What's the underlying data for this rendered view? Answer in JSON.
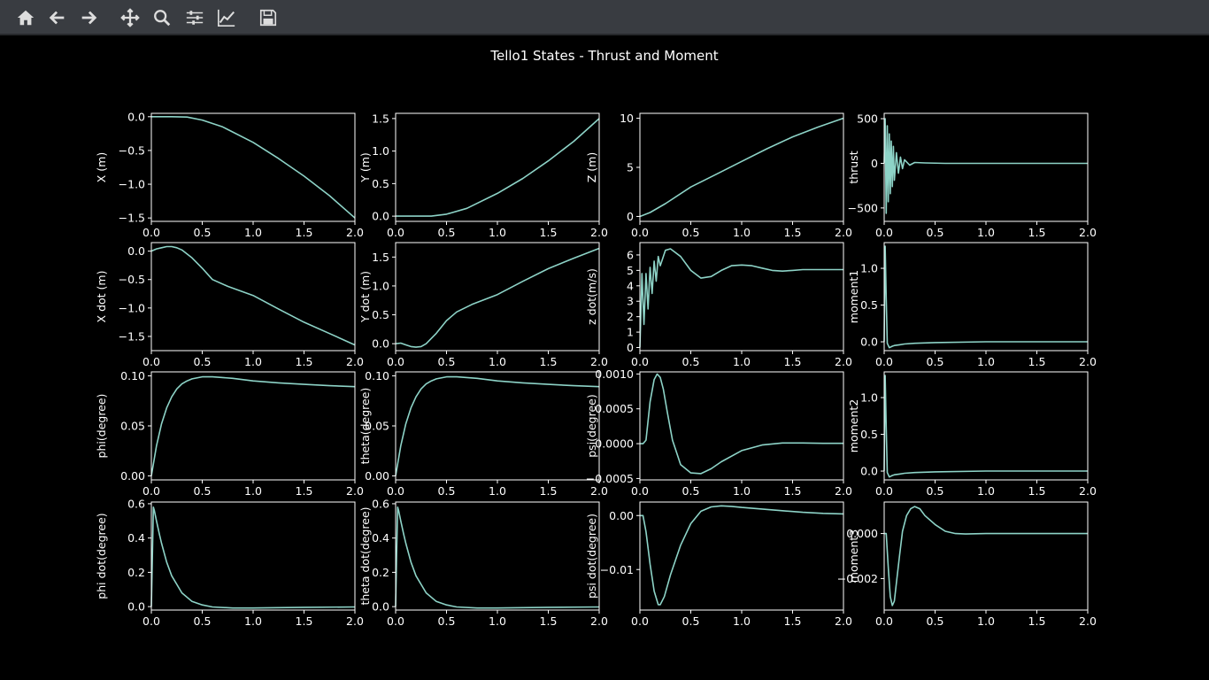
{
  "toolbar": {
    "buttons": [
      {
        "name": "home-button",
        "icon": "home-icon"
      },
      {
        "name": "back-button",
        "icon": "arrow-left-icon"
      },
      {
        "name": "forward-button",
        "icon": "arrow-right-icon"
      },
      {
        "name": "pan-button",
        "icon": "move-icon"
      },
      {
        "name": "zoom-button",
        "icon": "magnifier-icon"
      },
      {
        "name": "subplots-button",
        "icon": "sliders-icon"
      },
      {
        "name": "axes-button",
        "icon": "line-chart-icon"
      },
      {
        "name": "save-button",
        "icon": "floppy-icon"
      }
    ]
  },
  "figure": {
    "title": "Tello1 States - Thrust and Moment",
    "background": "#000000",
    "line_color": "#8dd3c7"
  },
  "chart_data": [
    {
      "type": "line",
      "ylabel": "X (m)",
      "xlim": [
        0,
        2
      ],
      "ylim": [
        -1.55,
        0.05
      ],
      "xticks": [
        "0.0",
        "0.5",
        "1.0",
        "1.5",
        "2.0"
      ],
      "yticks": [
        {
          "v": 0,
          "label": "0.0"
        },
        {
          "v": -0.5,
          "label": "−0.5"
        },
        {
          "v": -1,
          "label": "−1.0"
        },
        {
          "v": -1.5,
          "label": "−1.5"
        }
      ],
      "x": [
        0,
        0.2,
        0.35,
        0.5,
        0.7,
        1.0,
        1.25,
        1.5,
        1.75,
        2.0
      ],
      "y": [
        0,
        0,
        -0.005,
        -0.05,
        -0.15,
        -0.38,
        -0.62,
        -0.88,
        -1.17,
        -1.5
      ]
    },
    {
      "type": "line",
      "ylabel": "Y (m)",
      "xlim": [
        0,
        2
      ],
      "ylim": [
        -0.08,
        1.58
      ],
      "xticks": [
        "0.0",
        "0.5",
        "1.0",
        "1.5",
        "2.0"
      ],
      "yticks": [
        {
          "v": 0,
          "label": "0.0"
        },
        {
          "v": 0.5,
          "label": "0.5"
        },
        {
          "v": 1,
          "label": "1.0"
        },
        {
          "v": 1.5,
          "label": "1.5"
        }
      ],
      "x": [
        0,
        0.2,
        0.35,
        0.5,
        0.7,
        1.0,
        1.25,
        1.5,
        1.75,
        2.0
      ],
      "y": [
        0,
        0,
        0,
        0.03,
        0.12,
        0.35,
        0.58,
        0.85,
        1.15,
        1.5
      ]
    },
    {
      "type": "line",
      "ylabel": "Z (m)",
      "xlim": [
        0,
        2
      ],
      "ylim": [
        -0.5,
        10.5
      ],
      "xticks": [
        "0.0",
        "0.5",
        "1.0",
        "1.5",
        "2.0"
      ],
      "yticks": [
        {
          "v": 0,
          "label": "0"
        },
        {
          "v": 5,
          "label": "5"
        },
        {
          "v": 10,
          "label": "10"
        }
      ],
      "x": [
        0,
        0.1,
        0.25,
        0.5,
        0.75,
        1.0,
        1.25,
        1.5,
        1.75,
        2.0
      ],
      "y": [
        0,
        0.4,
        1.3,
        3.0,
        4.3,
        5.6,
        6.9,
        8.1,
        9.1,
        10.0
      ]
    },
    {
      "type": "line",
      "ylabel": "thrust",
      "xlim": [
        0,
        2
      ],
      "ylim": [
        -650,
        560
      ],
      "xticks": [
        "0.0",
        "0.5",
        "1.0",
        "1.5",
        "2.0"
      ],
      "yticks": [
        {
          "v": 500,
          "label": "500"
        },
        {
          "v": 0,
          "label": "0"
        },
        {
          "v": -500,
          "label": "−500"
        }
      ],
      "x": [
        0,
        0.01,
        0.02,
        0.03,
        0.04,
        0.05,
        0.06,
        0.07,
        0.08,
        0.09,
        0.1,
        0.12,
        0.14,
        0.16,
        0.18,
        0.2,
        0.25,
        0.3,
        0.4,
        0.6,
        1.0,
        2.0
      ],
      "y": [
        0,
        500,
        -560,
        420,
        -430,
        330,
        -340,
        250,
        -260,
        190,
        -190,
        120,
        -110,
        70,
        -60,
        40,
        -20,
        10,
        5,
        0,
        0,
        0
      ]
    },
    {
      "type": "line",
      "ylabel": "X dot (m)",
      "xlim": [
        0,
        2
      ],
      "ylim": [
        -1.75,
        0.15
      ],
      "xticks": [
        "0.0",
        "0.5",
        "1.0",
        "1.5",
        "2.0"
      ],
      "yticks": [
        {
          "v": 0,
          "label": "0.0"
        },
        {
          "v": -0.5,
          "label": "−0.5"
        },
        {
          "v": -1,
          "label": "−1.0"
        },
        {
          "v": -1.5,
          "label": "−1.5"
        }
      ],
      "x": [
        0,
        0.05,
        0.1,
        0.15,
        0.2,
        0.25,
        0.3,
        0.4,
        0.5,
        0.6,
        0.75,
        1.0,
        1.25,
        1.5,
        1.75,
        2.0
      ],
      "y": [
        0,
        0.04,
        0.06,
        0.08,
        0.08,
        0.06,
        0.02,
        -0.12,
        -0.3,
        -0.5,
        -0.62,
        -0.78,
        -1.02,
        -1.25,
        -1.45,
        -1.65
      ]
    },
    {
      "type": "line",
      "ylabel": "Y dot (m)",
      "xlim": [
        0,
        2
      ],
      "ylim": [
        -0.12,
        1.75
      ],
      "xticks": [
        "0.0",
        "0.5",
        "1.0",
        "1.5",
        "2.0"
      ],
      "yticks": [
        {
          "v": 0,
          "label": "0.0"
        },
        {
          "v": 0.5,
          "label": "0.5"
        },
        {
          "v": 1,
          "label": "1.0"
        },
        {
          "v": 1.5,
          "label": "1.5"
        }
      ],
      "x": [
        0,
        0.05,
        0.1,
        0.15,
        0.2,
        0.25,
        0.3,
        0.4,
        0.5,
        0.6,
        0.75,
        1.0,
        1.25,
        1.5,
        1.75,
        2.0
      ],
      "y": [
        0,
        0.01,
        -0.02,
        -0.05,
        -0.06,
        -0.05,
        0,
        0.18,
        0.4,
        0.55,
        0.68,
        0.85,
        1.08,
        1.3,
        1.48,
        1.65
      ]
    },
    {
      "type": "line",
      "ylabel": "z dot(m/s)",
      "xlim": [
        0,
        2
      ],
      "ylim": [
        -0.2,
        6.8
      ],
      "xticks": [
        "0.0",
        "0.5",
        "1.0",
        "1.5",
        "2.0"
      ],
      "yticks": [
        {
          "v": 0,
          "label": "0"
        },
        {
          "v": 1,
          "label": "1"
        },
        {
          "v": 2,
          "label": "2"
        },
        {
          "v": 3,
          "label": "3"
        },
        {
          "v": 4,
          "label": "4"
        },
        {
          "v": 5,
          "label": "5"
        },
        {
          "v": 6,
          "label": "6"
        }
      ],
      "x": [
        0,
        0.02,
        0.04,
        0.06,
        0.08,
        0.1,
        0.12,
        0.14,
        0.16,
        0.18,
        0.2,
        0.25,
        0.3,
        0.4,
        0.5,
        0.6,
        0.7,
        0.8,
        0.9,
        1.0,
        1.1,
        1.2,
        1.3,
        1.4,
        1.5,
        1.6,
        1.8,
        2.0
      ],
      "y": [
        0,
        4.8,
        1.5,
        4.8,
        2.5,
        5.2,
        3.5,
        5.6,
        4.3,
        5.9,
        5.3,
        6.3,
        6.4,
        5.9,
        5.0,
        4.5,
        4.6,
        5.0,
        5.3,
        5.35,
        5.3,
        5.15,
        5.0,
        4.95,
        5.0,
        5.05,
        5.05,
        5.05
      ]
    },
    {
      "type": "line",
      "ylabel": "moment1",
      "xlim": [
        0,
        2
      ],
      "ylim": [
        -0.12,
        1.35
      ],
      "xticks": [
        "0.0",
        "0.5",
        "1.0",
        "1.5",
        "2.0"
      ],
      "yticks": [
        {
          "v": 0,
          "label": "0.0"
        },
        {
          "v": 0.5,
          "label": "0.5"
        },
        {
          "v": 1,
          "label": "1.0"
        }
      ],
      "x": [
        0,
        0.01,
        0.02,
        0.03,
        0.05,
        0.08,
        0.1,
        0.15,
        0.2,
        0.3,
        0.5,
        1.0,
        2.0
      ],
      "y": [
        0,
        1.3,
        0.6,
        -0.02,
        -0.08,
        -0.06,
        -0.05,
        -0.04,
        -0.03,
        -0.02,
        -0.01,
        0,
        0
      ]
    },
    {
      "type": "line",
      "ylabel": "phi(degree)",
      "xlim": [
        0,
        2
      ],
      "ylim": [
        -0.004,
        0.104
      ],
      "xticks": [
        "0.0",
        "0.5",
        "1.0",
        "1.5",
        "2.0"
      ],
      "yticks": [
        {
          "v": 0,
          "label": "0.00"
        },
        {
          "v": 0.05,
          "label": "0.05"
        },
        {
          "v": 0.1,
          "label": "0.10"
        }
      ],
      "x": [
        0,
        0.05,
        0.1,
        0.15,
        0.2,
        0.25,
        0.3,
        0.35,
        0.4,
        0.5,
        0.6,
        0.8,
        1.0,
        1.25,
        1.5,
        1.75,
        2.0
      ],
      "y": [
        0,
        0.03,
        0.052,
        0.068,
        0.079,
        0.087,
        0.092,
        0.095,
        0.097,
        0.099,
        0.099,
        0.0975,
        0.095,
        0.093,
        0.0915,
        0.0902,
        0.0892
      ]
    },
    {
      "type": "line",
      "ylabel": "theta(degree)",
      "xlim": [
        0,
        2
      ],
      "ylim": [
        -0.004,
        0.104
      ],
      "xticks": [
        "0.0",
        "0.5",
        "1.0",
        "1.5",
        "2.0"
      ],
      "yticks": [
        {
          "v": 0,
          "label": "0.00"
        },
        {
          "v": 0.05,
          "label": "0.05"
        },
        {
          "v": 0.1,
          "label": "0.10"
        }
      ],
      "x": [
        0,
        0.05,
        0.1,
        0.15,
        0.2,
        0.25,
        0.3,
        0.35,
        0.4,
        0.5,
        0.6,
        0.8,
        1.0,
        1.25,
        1.5,
        1.75,
        2.0
      ],
      "y": [
        0,
        0.03,
        0.052,
        0.068,
        0.079,
        0.087,
        0.092,
        0.095,
        0.097,
        0.099,
        0.099,
        0.0975,
        0.095,
        0.093,
        0.0915,
        0.0902,
        0.0892
      ]
    },
    {
      "type": "line",
      "ylabel": "psi(degree)",
      "xlim": [
        0,
        2
      ],
      "ylim": [
        -0.00052,
        0.00103
      ],
      "xticks": [
        "0.0",
        "0.5",
        "1.0",
        "1.5",
        "2.0"
      ],
      "yticks": [
        {
          "v": 0.001,
          "label": "0.0010"
        },
        {
          "v": 0.0005,
          "label": "0.0005"
        },
        {
          "v": 0,
          "label": "0.0000"
        },
        {
          "v": -0.0005,
          "label": "−0.0005"
        }
      ],
      "x": [
        0,
        0.03,
        0.06,
        0.1,
        0.14,
        0.17,
        0.2,
        0.23,
        0.27,
        0.32,
        0.4,
        0.5,
        0.6,
        0.7,
        0.8,
        1.0,
        1.2,
        1.4,
        1.6,
        1.8,
        2.0
      ],
      "y": [
        0,
        0,
        5e-05,
        0.0006,
        0.00092,
        0.001,
        0.00095,
        0.00078,
        0.00045,
        5e-05,
        -0.0003,
        -0.00042,
        -0.00043,
        -0.00036,
        -0.00026,
        -0.0001,
        -2e-05,
        1e-05,
        1e-05,
        5e-06,
        5e-06
      ]
    },
    {
      "type": "line",
      "ylabel": "moment2",
      "xlim": [
        0,
        2
      ],
      "ylim": [
        -0.12,
        1.35
      ],
      "xticks": [
        "0.0",
        "0.5",
        "1.0",
        "1.5",
        "2.0"
      ],
      "yticks": [
        {
          "v": 0,
          "label": "0.0"
        },
        {
          "v": 0.5,
          "label": "0.5"
        },
        {
          "v": 1,
          "label": "1.0"
        }
      ],
      "x": [
        0,
        0.01,
        0.02,
        0.03,
        0.05,
        0.08,
        0.1,
        0.15,
        0.2,
        0.3,
        0.5,
        1.0,
        2.0
      ],
      "y": [
        0,
        1.3,
        0.6,
        -0.02,
        -0.08,
        -0.06,
        -0.05,
        -0.04,
        -0.03,
        -0.02,
        -0.01,
        0,
        0
      ]
    },
    {
      "type": "line",
      "ylabel": "phi dot(degree)",
      "xlim": [
        0,
        2
      ],
      "ylim": [
        -0.02,
        0.61
      ],
      "xticks": [
        "0.0",
        "0.5",
        "1.0",
        "1.5",
        "2.0"
      ],
      "yticks": [
        {
          "v": 0,
          "label": "0.0"
        },
        {
          "v": 0.2,
          "label": "0.2"
        },
        {
          "v": 0.4,
          "label": "0.4"
        },
        {
          "v": 0.6,
          "label": "0.6"
        }
      ],
      "x": [
        0,
        0.01,
        0.02,
        0.03,
        0.05,
        0.08,
        0.1,
        0.15,
        0.2,
        0.3,
        0.4,
        0.5,
        0.6,
        0.8,
        1.0,
        1.5,
        2.0
      ],
      "y": [
        0,
        0.3,
        0.58,
        0.56,
        0.5,
        0.42,
        0.37,
        0.26,
        0.18,
        0.08,
        0.03,
        0.01,
        -0.002,
        -0.008,
        -0.008,
        -0.004,
        -0.002
      ]
    },
    {
      "type": "line",
      "ylabel": "theta dot(degree)",
      "xlim": [
        0,
        2
      ],
      "ylim": [
        -0.02,
        0.61
      ],
      "xticks": [
        "0.0",
        "0.5",
        "1.0",
        "1.5",
        "2.0"
      ],
      "yticks": [
        {
          "v": 0,
          "label": "0.0"
        },
        {
          "v": 0.2,
          "label": "0.2"
        },
        {
          "v": 0.4,
          "label": "0.4"
        },
        {
          "v": 0.6,
          "label": "0.6"
        }
      ],
      "x": [
        0,
        0.01,
        0.02,
        0.03,
        0.05,
        0.08,
        0.1,
        0.15,
        0.2,
        0.3,
        0.4,
        0.5,
        0.6,
        0.8,
        1.0,
        1.5,
        2.0
      ],
      "y": [
        0,
        0.3,
        0.58,
        0.56,
        0.5,
        0.42,
        0.37,
        0.26,
        0.18,
        0.08,
        0.03,
        0.01,
        -0.002,
        -0.008,
        -0.008,
        -0.004,
        -0.002
      ]
    },
    {
      "type": "line",
      "ylabel": "psi dot(degree)",
      "xlim": [
        0,
        2
      ],
      "ylim": [
        -0.0175,
        0.0025
      ],
      "xticks": [
        "0.0",
        "0.5",
        "1.0",
        "1.5",
        "2.0"
      ],
      "yticks": [
        {
          "v": 0,
          "label": "0.00"
        },
        {
          "v": -0.01,
          "label": "−0.01"
        }
      ],
      "x": [
        0,
        0.03,
        0.06,
        0.1,
        0.14,
        0.18,
        0.2,
        0.24,
        0.3,
        0.4,
        0.5,
        0.6,
        0.7,
        0.8,
        0.9,
        1.0,
        1.2,
        1.4,
        1.6,
        1.8,
        2.0
      ],
      "y": [
        0,
        0,
        -0.003,
        -0.009,
        -0.014,
        -0.0165,
        -0.0165,
        -0.015,
        -0.011,
        -0.0055,
        -0.0015,
        0.0008,
        0.0016,
        0.0018,
        0.0017,
        0.0015,
        0.0012,
        0.0009,
        0.0006,
        0.0004,
        0.0003
      ]
    },
    {
      "type": "line",
      "ylabel": "moment3",
      "xlim": [
        0,
        2
      ],
      "ylim": [
        -0.0034,
        0.0014
      ],
      "xticks": [
        "0.0",
        "0.5",
        "1.0",
        "1.5",
        "2.0"
      ],
      "yticks": [
        {
          "v": 0,
          "label": "0.000"
        },
        {
          "v": -0.002,
          "label": "−0.002"
        }
      ],
      "x": [
        0,
        0.02,
        0.04,
        0.06,
        0.08,
        0.1,
        0.12,
        0.15,
        0.18,
        0.22,
        0.26,
        0.3,
        0.35,
        0.4,
        0.5,
        0.6,
        0.7,
        0.8,
        1.0,
        1.5,
        2.0
      ],
      "y": [
        0,
        0,
        -0.0015,
        -0.0028,
        -0.0032,
        -0.003,
        -0.0022,
        -0.001,
        0.0001,
        0.0008,
        0.0011,
        0.0012,
        0.0011,
        0.0008,
        0.0004,
        0.0001,
        0,
        -2e-05,
        0,
        0,
        0
      ]
    }
  ]
}
